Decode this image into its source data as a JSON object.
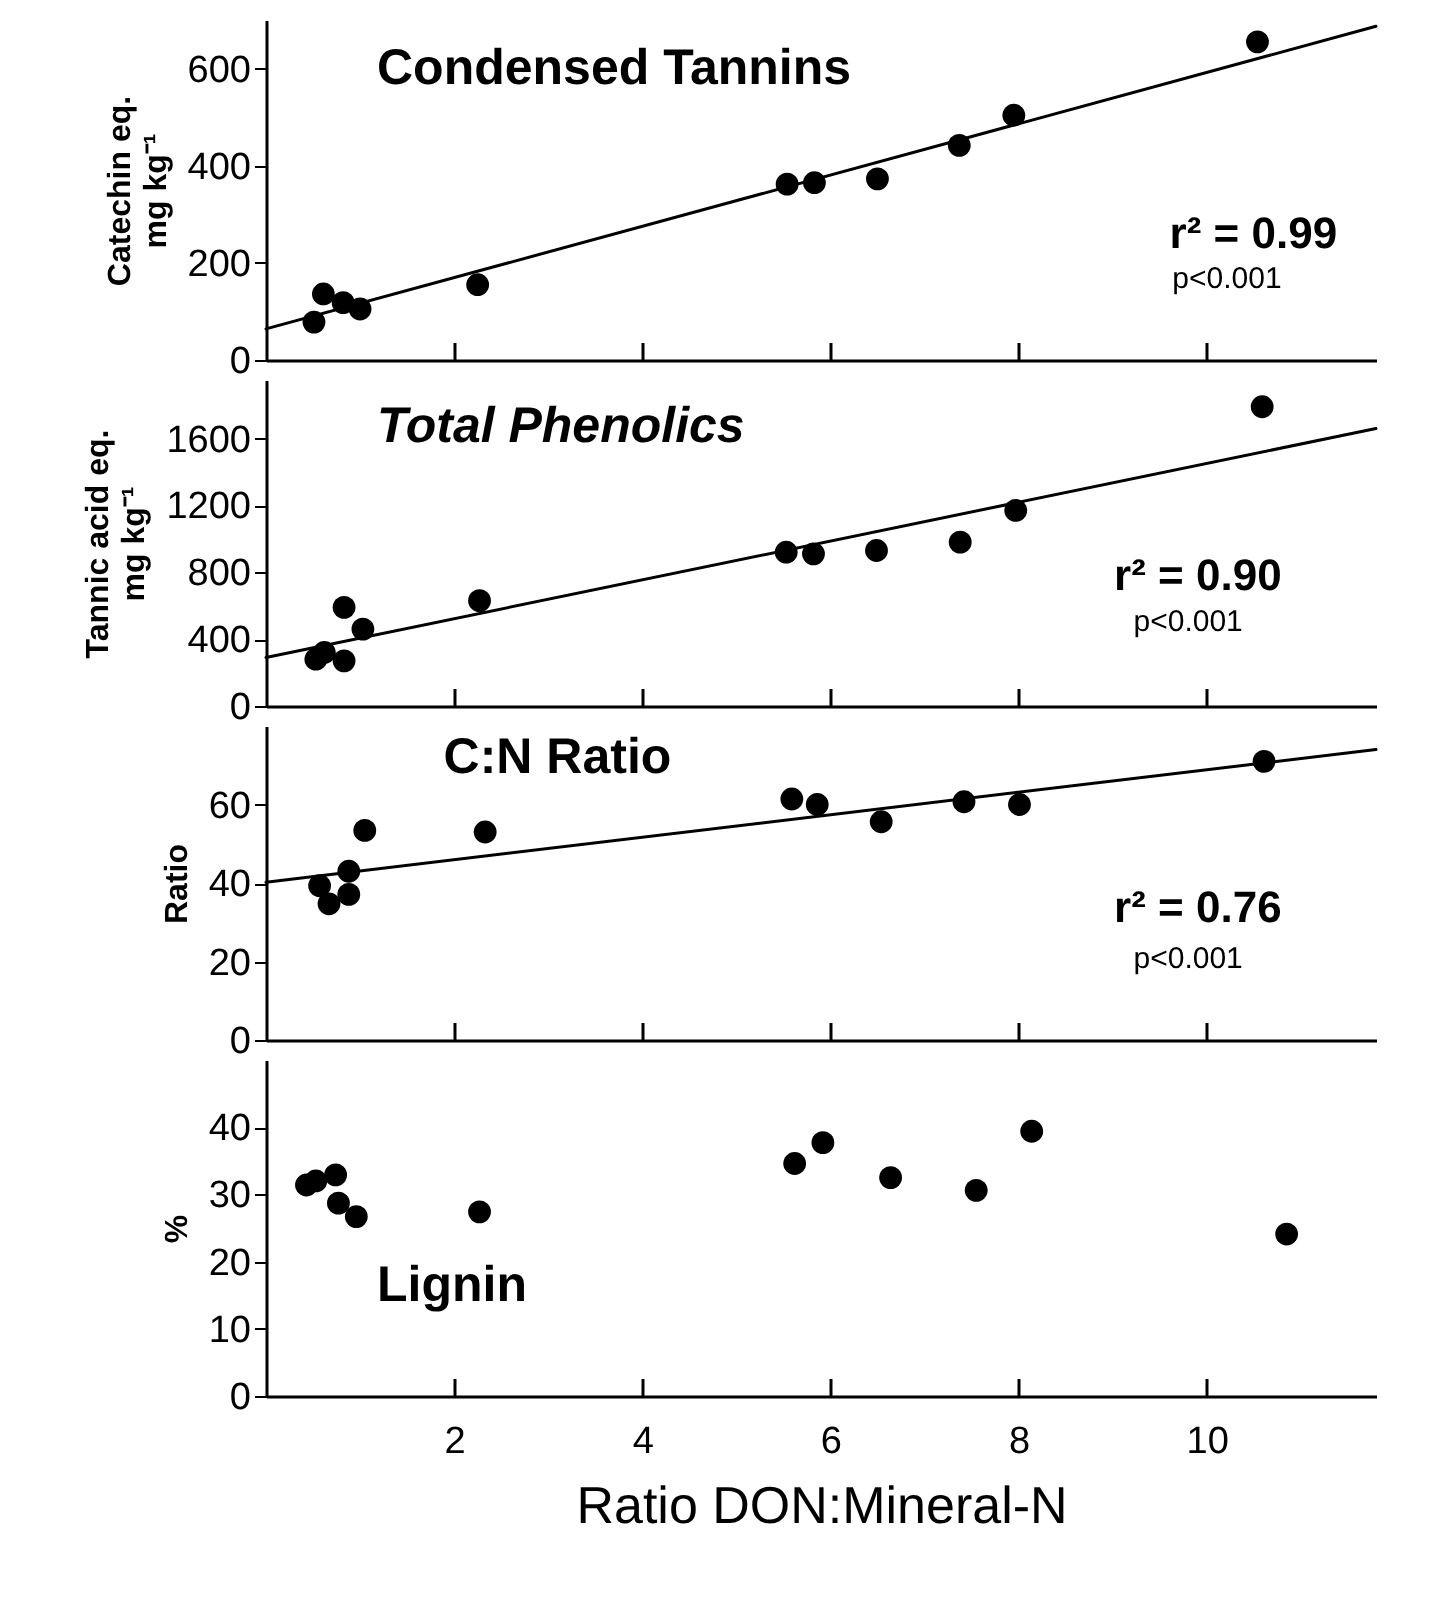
{
  "chart_data": [
    {
      "type": "scatter",
      "title": "Condensed Tannins",
      "ylabel": "Catechin eq.\nmg kg⁻¹",
      "annotations": [
        "r² = 0.99",
        "p<0.001"
      ],
      "xlim": [
        0,
        11.8
      ],
      "xticks": [
        2,
        4,
        6,
        8,
        10
      ],
      "ylim": [
        0,
        700
      ],
      "yticks": [
        0,
        200,
        400,
        600
      ],
      "tick_labels": "y",
      "grid": false,
      "series": [
        {
          "type": "scatter",
          "marker": "circle",
          "color": "#000000",
          "x": [
            0.51,
            0.61,
            0.82,
            1.0,
            2.25,
            5.54,
            5.83,
            6.5,
            7.37,
            7.95,
            10.54
          ],
          "values": [
            78,
            136,
            118,
            105,
            155,
            362,
            365,
            373,
            442,
            504,
            655
          ]
        },
        {
          "type": "line",
          "color": "#000000",
          "x": [
            0,
            11.8
          ],
          "values": [
            64,
            687
          ]
        }
      ]
    },
    {
      "type": "scatter",
      "title": "Total Phenolics",
      "ylabel": "Tannic acid eq.\nmg kg⁻¹",
      "annotations": [
        "r² = 0.90",
        "p<0.001"
      ],
      "xlim": [
        0,
        11.8
      ],
      "xticks": [
        2,
        4,
        6,
        8,
        10
      ],
      "ylim": [
        0,
        1950
      ],
      "yticks": [
        0,
        400,
        800,
        1200,
        1600
      ],
      "tick_labels": "y",
      "grid": false,
      "series": [
        {
          "type": "scatter",
          "marker": "circle",
          "color": "#000000",
          "x": [
            0.53,
            0.62,
            0.83,
            0.83,
            1.03,
            2.27,
            5.53,
            5.82,
            6.49,
            7.38,
            7.97,
            10.59
          ],
          "values": [
            280,
            320,
            270,
            590,
            460,
            630,
            920,
            910,
            930,
            980,
            1170,
            1790
          ]
        },
        {
          "type": "line",
          "color": "#000000",
          "x": [
            0,
            11.8
          ],
          "values": [
            290,
            1660
          ]
        }
      ]
    },
    {
      "type": "scatter",
      "title": "C:N Ratio",
      "ylabel": "Ratio",
      "annotations": [
        "r² = 0.76",
        "p<0.001"
      ],
      "xlim": [
        0,
        11.8
      ],
      "xticks": [
        2,
        4,
        6,
        8,
        10
      ],
      "ylim": [
        0,
        80
      ],
      "yticks": [
        0,
        20,
        40,
        60
      ],
      "tick_labels": "y",
      "grid": false,
      "series": [
        {
          "type": "scatter",
          "marker": "circle",
          "color": "#000000",
          "x": [
            0.57,
            0.67,
            0.88,
            0.88,
            1.05,
            2.33,
            5.59,
            5.86,
            6.54,
            7.42,
            8.01,
            10.61
          ],
          "values": [
            39.3,
            34.7,
            37.1,
            43,
            53.4,
            53,
            61.4,
            60,
            55.6,
            60.7,
            60,
            71
          ]
        },
        {
          "type": "line",
          "color": "#000000",
          "x": [
            0,
            11.8
          ],
          "values": [
            40.2,
            74
          ]
        }
      ]
    },
    {
      "type": "scatter",
      "title": "Lignin",
      "ylabel": "%",
      "xlabel": "Ratio DON:Mineral-N",
      "xlim": [
        0,
        11.8
      ],
      "xticks": [
        2,
        4,
        6,
        8,
        10
      ],
      "ylim": [
        0,
        50
      ],
      "yticks": [
        0,
        10,
        20,
        30,
        40
      ],
      "grid": false,
      "series": [
        {
          "type": "scatter",
          "marker": "circle",
          "color": "#000000",
          "x": [
            0.43,
            0.53,
            0.74,
            0.77,
            0.96,
            2.27,
            5.62,
            5.92,
            6.64,
            7.55,
            8.14,
            10.85
          ],
          "values": [
            31.4,
            32,
            32.9,
            28.7,
            26.7,
            27.4,
            34.6,
            37.7,
            32.5,
            30.6,
            39.4,
            24.1
          ]
        }
      ]
    }
  ]
}
